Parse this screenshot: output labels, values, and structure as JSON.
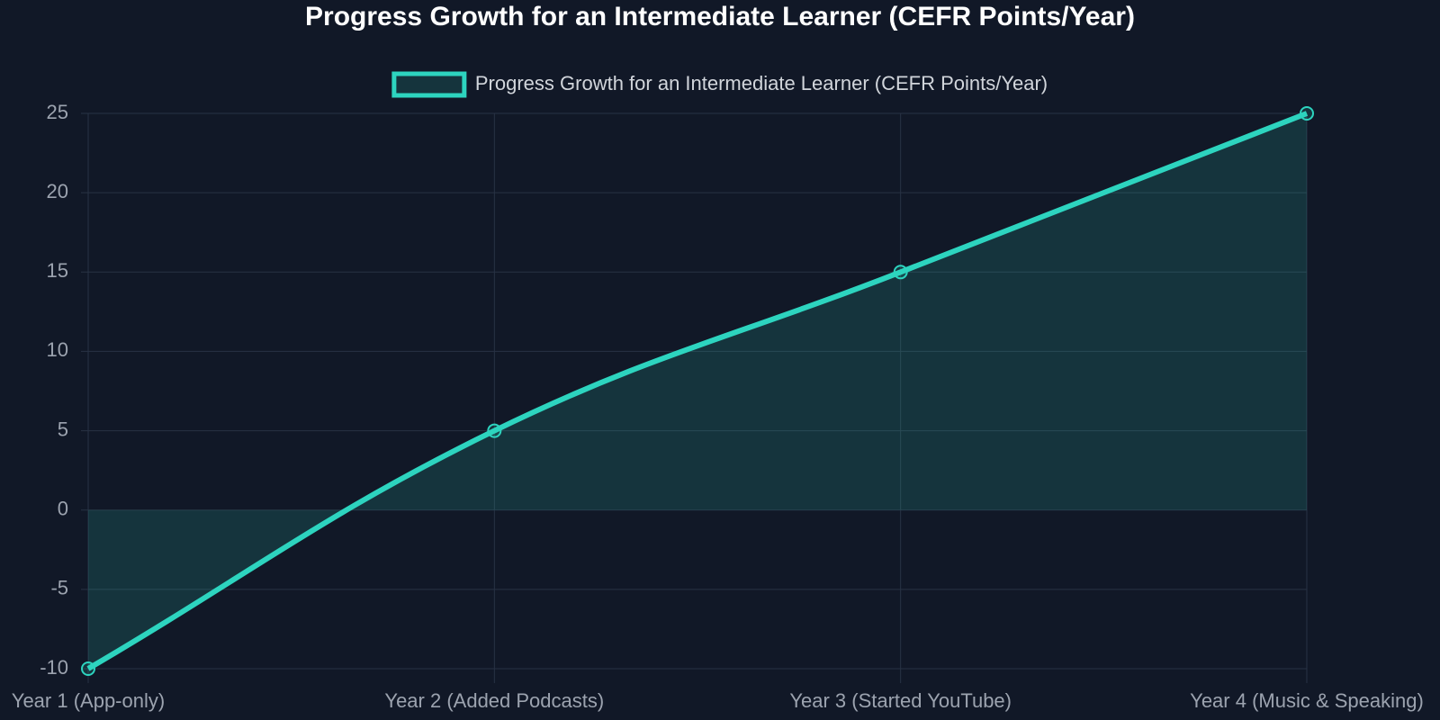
{
  "chart_data": {
    "type": "line",
    "title": "Progress Growth for an Intermediate Learner (CEFR Points/Year)",
    "categories": [
      "Year 1 (App-only)",
      "Year 2 (Added Podcasts)",
      "Year 3 (Started YouTube)",
      "Year 4 (Music & Speaking)"
    ],
    "series": [
      {
        "name": "Progress Growth for an Intermediate Learner (CEFR Points/Year)",
        "color": "#2dd4bf",
        "values": [
          -10,
          5,
          15,
          25
        ]
      }
    ],
    "ylim": [
      -10,
      25
    ],
    "yticks": [
      -10,
      -5,
      0,
      5,
      10,
      15,
      20,
      25
    ],
    "grid": true,
    "fill": true
  }
}
